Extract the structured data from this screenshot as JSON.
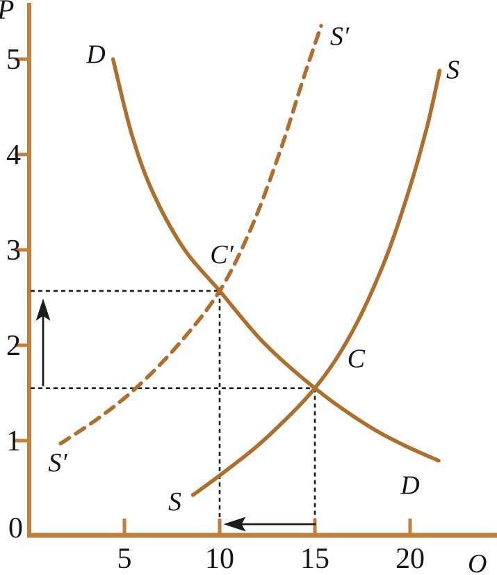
{
  "figure": {
    "background": "#ffffff",
    "axis_color": "#c0803a",
    "curve_color": "#ae6f2c",
    "guide_color": "#1c1c1c",
    "label_color": "#151515"
  },
  "chart_data": {
    "type": "line",
    "title": "",
    "xlabel": "O",
    "ylabel": "P",
    "origin_label": "0",
    "x_ticks": [
      5,
      10,
      15,
      20
    ],
    "y_ticks": [
      1,
      2,
      3,
      4,
      5
    ],
    "xlim": [
      0,
      24.5
    ],
    "ylim": [
      0,
      5.6
    ],
    "grid": false,
    "series": [
      {
        "name": "demand-curve",
        "label": "D",
        "style": "solid",
        "points": [
          [
            4.4,
            5.0
          ],
          [
            5.4,
            4.2
          ],
          [
            6.5,
            3.6
          ],
          [
            8.1,
            3.02
          ],
          [
            10,
            2.57
          ],
          [
            12.3,
            2.03
          ],
          [
            15,
            1.55
          ],
          [
            17.6,
            1.18
          ],
          [
            19.6,
            0.96
          ],
          [
            21.5,
            0.79
          ]
        ],
        "labels": [
          {
            "text": "D",
            "q": 3.0,
            "p": 4.96
          },
          {
            "text": "D",
            "q": 19.5,
            "p": 0.44
          }
        ]
      },
      {
        "name": "supply-curve",
        "label": "S",
        "style": "solid",
        "points": [
          [
            8.6,
            0.43
          ],
          [
            10.3,
            0.68
          ],
          [
            12.4,
            1.02
          ],
          [
            15,
            1.55
          ],
          [
            16.9,
            2.12
          ],
          [
            18.6,
            2.85
          ],
          [
            19.9,
            3.6
          ],
          [
            20.9,
            4.3
          ],
          [
            21.55,
            4.88
          ]
        ],
        "labels": [
          {
            "text": "S",
            "q": 7.3,
            "p": 0.27
          },
          {
            "text": "S",
            "q": 21.9,
            "p": 4.8
          }
        ]
      },
      {
        "name": "shifted-supply-curve",
        "label": "S′",
        "style": "dashed",
        "points": [
          [
            1.65,
            0.97
          ],
          [
            3.6,
            1.23
          ],
          [
            5.6,
            1.55
          ],
          [
            7.8,
            2.0
          ],
          [
            10,
            2.57
          ],
          [
            11.7,
            3.25
          ],
          [
            13.2,
            4.05
          ],
          [
            14.4,
            4.8
          ],
          [
            15.33,
            5.35
          ]
        ],
        "labels": [
          {
            "text": "S′",
            "q": 1.0,
            "p": 0.68
          },
          {
            "text": "S′",
            "q": 15.8,
            "p": 5.15
          }
        ]
      }
    ],
    "equilibria": [
      {
        "name": "equilibrium-C",
        "text": "C",
        "q": 15,
        "p": 1.55,
        "label_q": 16.7,
        "label_p": 1.77
      },
      {
        "name": "equilibrium-C-prime",
        "text": "C′",
        "q": 10,
        "p": 2.57,
        "label_q": 9.5,
        "label_p": 2.86
      }
    ],
    "guides": [
      {
        "name": "price-guide-new",
        "type": "h",
        "p": 2.57,
        "q0": 0.07,
        "q1": 10
      },
      {
        "name": "price-guide-old",
        "type": "h",
        "p": 1.55,
        "q0": 0.07,
        "q1": 15
      },
      {
        "name": "quantity-guide-new",
        "type": "v",
        "q": 10,
        "p0": 0.18,
        "p1": 2.57
      },
      {
        "name": "quantity-guide-old",
        "type": "v",
        "q": 15,
        "p0": 0.18,
        "p1": 1.55
      }
    ],
    "arrows": [
      {
        "name": "price-increase-arrow",
        "dir": "up",
        "q": 0.73,
        "p_from": 1.57,
        "p_to": 2.49
      },
      {
        "name": "quantity-decrease-arrow",
        "dir": "left",
        "p": 0.124,
        "q_from": 15.05,
        "q_to": 10.2
      }
    ]
  }
}
